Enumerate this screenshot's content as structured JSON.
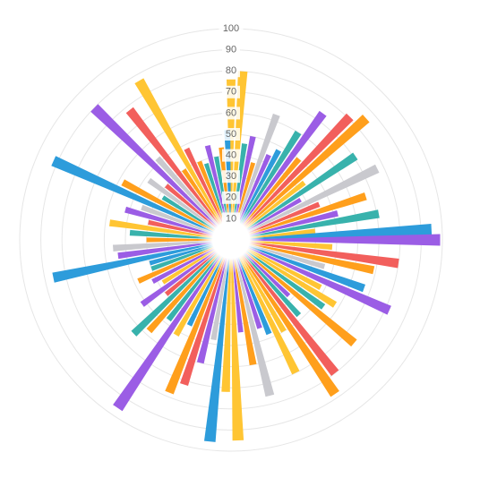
{
  "chart_data": {
    "type": "polar-bar",
    "radial_axis": {
      "min": 0,
      "max": 100,
      "ticks": [
        10,
        20,
        30,
        40,
        50,
        60,
        70,
        80,
        90,
        100
      ],
      "tick_labels": [
        "10",
        "20",
        "30",
        "40",
        "50",
        "60",
        "70",
        "80",
        "90",
        "100"
      ]
    },
    "grid": true,
    "legend": "none",
    "palette": [
      "#ffc533",
      "#f25f5c",
      "#9b5de5",
      "#2d9cdb",
      "#ff9f1c",
      "#38b2ac",
      "#c9c9ce"
    ],
    "bars": [
      {
        "angle": 0,
        "value": 76,
        "color": "#ffc533"
      },
      {
        "angle": 4,
        "value": 80,
        "color": "#ffc533"
      },
      {
        "angle": 8,
        "value": 46,
        "color": "#38b2ac"
      },
      {
        "angle": 12,
        "value": 50,
        "color": "#9b5de5"
      },
      {
        "angle": 16,
        "value": 38,
        "color": "#ff9f1c"
      },
      {
        "angle": 20,
        "value": 63,
        "color": "#c9c9ce"
      },
      {
        "angle": 24,
        "value": 44,
        "color": "#9b5de5"
      },
      {
        "angle": 28,
        "value": 48,
        "color": "#2d9cdb"
      },
      {
        "angle": 32,
        "value": 60,
        "color": "#38b2ac"
      },
      {
        "angle": 36,
        "value": 74,
        "color": "#9b5de5"
      },
      {
        "angle": 40,
        "value": 50,
        "color": "#ff9f1c"
      },
      {
        "angle": 44,
        "value": 81,
        "color": "#f25f5c"
      },
      {
        "angle": 48,
        "value": 86,
        "color": "#ff9f1c"
      },
      {
        "angle": 52,
        "value": 44,
        "color": "#ffc533"
      },
      {
        "angle": 56,
        "value": 71,
        "color": "#38b2ac"
      },
      {
        "angle": 60,
        "value": 38,
        "color": "#9b5de5"
      },
      {
        "angle": 64,
        "value": 77,
        "color": "#c9c9ce"
      },
      {
        "angle": 68,
        "value": 45,
        "color": "#f25f5c"
      },
      {
        "angle": 72,
        "value": 67,
        "color": "#ff9f1c"
      },
      {
        "angle": 76,
        "value": 52,
        "color": "#9b5de5"
      },
      {
        "angle": 80,
        "value": 71,
        "color": "#38b2ac"
      },
      {
        "angle": 84,
        "value": 40,
        "color": "#ffc533"
      },
      {
        "angle": 87,
        "value": 95,
        "color": "#2d9cdb"
      },
      {
        "angle": 90,
        "value": 99,
        "color": "#9b5de5"
      },
      {
        "angle": 94,
        "value": 48,
        "color": "#ffc533"
      },
      {
        "angle": 98,
        "value": 80,
        "color": "#f25f5c"
      },
      {
        "angle": 102,
        "value": 69,
        "color": "#ff9f1c"
      },
      {
        "angle": 106,
        "value": 46,
        "color": "#c9c9ce"
      },
      {
        "angle": 110,
        "value": 67,
        "color": "#2d9cdb"
      },
      {
        "angle": 114,
        "value": 82,
        "color": "#9b5de5"
      },
      {
        "angle": 118,
        "value": 48,
        "color": "#ffc533"
      },
      {
        "angle": 122,
        "value": 58,
        "color": "#ffc533"
      },
      {
        "angle": 126,
        "value": 54,
        "color": "#38b2ac"
      },
      {
        "angle": 130,
        "value": 76,
        "color": "#ff9f1c"
      },
      {
        "angle": 134,
        "value": 38,
        "color": "#9b5de5"
      },
      {
        "angle": 138,
        "value": 48,
        "color": "#38b2ac"
      },
      {
        "angle": 142,
        "value": 80,
        "color": "#f25f5c"
      },
      {
        "angle": 146,
        "value": 88,
        "color": "#ff9f1c"
      },
      {
        "angle": 150,
        "value": 50,
        "color": "#ffc533"
      },
      {
        "angle": 154,
        "value": 70,
        "color": "#ffc533"
      },
      {
        "angle": 158,
        "value": 48,
        "color": "#2d9cdb"
      },
      {
        "angle": 162,
        "value": 44,
        "color": "#9b5de5"
      },
      {
        "angle": 166,
        "value": 76,
        "color": "#c9c9ce"
      },
      {
        "angle": 170,
        "value": 60,
        "color": "#ff9f1c"
      },
      {
        "angle": 174,
        "value": 44,
        "color": "#9b5de5"
      },
      {
        "angle": 178,
        "value": 95,
        "color": "#ffc533"
      },
      {
        "angle": 182,
        "value": 72,
        "color": "#ffc533"
      },
      {
        "angle": 186,
        "value": 96,
        "color": "#2d9cdb"
      },
      {
        "angle": 190,
        "value": 48,
        "color": "#c9c9ce"
      },
      {
        "angle": 194,
        "value": 60,
        "color": "#9b5de5"
      },
      {
        "angle": 198,
        "value": 72,
        "color": "#f25f5c"
      },
      {
        "angle": 202,
        "value": 78,
        "color": "#ff9f1c"
      },
      {
        "angle": 206,
        "value": 45,
        "color": "#2d9cdb"
      },
      {
        "angle": 210,
        "value": 52,
        "color": "#ffc533"
      },
      {
        "angle": 214,
        "value": 96,
        "color": "#9b5de5"
      },
      {
        "angle": 218,
        "value": 48,
        "color": "#38b2ac"
      },
      {
        "angle": 222,
        "value": 58,
        "color": "#ff9f1c"
      },
      {
        "angle": 226,
        "value": 64,
        "color": "#38b2ac"
      },
      {
        "angle": 230,
        "value": 40,
        "color": "#f25f5c"
      },
      {
        "angle": 234,
        "value": 52,
        "color": "#9b5de5"
      },
      {
        "angle": 238,
        "value": 38,
        "color": "#ffc533"
      },
      {
        "angle": 242,
        "value": 42,
        "color": "#9b5de5"
      },
      {
        "angle": 246,
        "value": 48,
        "color": "#ff9f1c"
      },
      {
        "angle": 250,
        "value": 40,
        "color": "#38b2ac"
      },
      {
        "angle": 254,
        "value": 40,
        "color": "#2d9cdb"
      },
      {
        "angle": 258,
        "value": 86,
        "color": "#2d9cdb"
      },
      {
        "angle": 262,
        "value": 54,
        "color": "#9b5de5"
      },
      {
        "angle": 266,
        "value": 56,
        "color": "#c9c9ce"
      },
      {
        "angle": 270,
        "value": 40,
        "color": "#ff9f1c"
      },
      {
        "angle": 274,
        "value": 48,
        "color": "#38b2ac"
      },
      {
        "angle": 278,
        "value": 58,
        "color": "#ffc533"
      },
      {
        "angle": 282,
        "value": 40,
        "color": "#f25f5c"
      },
      {
        "angle": 286,
        "value": 52,
        "color": "#9b5de5"
      },
      {
        "angle": 290,
        "value": 45,
        "color": "#c9c9ce"
      },
      {
        "angle": 294,
        "value": 92,
        "color": "#2d9cdb"
      },
      {
        "angle": 298,
        "value": 58,
        "color": "#ff9f1c"
      },
      {
        "angle": 302,
        "value": 38,
        "color": "#38b2ac"
      },
      {
        "angle": 306,
        "value": 48,
        "color": "#c9c9ce"
      },
      {
        "angle": 310,
        "value": 40,
        "color": "#f25f5c"
      },
      {
        "angle": 314,
        "value": 90,
        "color": "#9b5de5"
      },
      {
        "angle": 318,
        "value": 52,
        "color": "#c9c9ce"
      },
      {
        "angle": 322,
        "value": 78,
        "color": "#f25f5c"
      },
      {
        "angle": 326,
        "value": 40,
        "color": "#ff9f1c"
      },
      {
        "angle": 330,
        "value": 87,
        "color": "#ffc533"
      },
      {
        "angle": 334,
        "value": 48,
        "color": "#f25f5c"
      },
      {
        "angle": 338,
        "value": 40,
        "color": "#ff9f1c"
      },
      {
        "angle": 342,
        "value": 38,
        "color": "#38b2ac"
      },
      {
        "angle": 346,
        "value": 46,
        "color": "#9b5de5"
      },
      {
        "angle": 350,
        "value": 40,
        "color": "#38b2ac"
      },
      {
        "angle": 354,
        "value": 44,
        "color": "#ff9f1c"
      },
      {
        "angle": 358,
        "value": 52,
        "color": "#2d9cdb"
      }
    ]
  }
}
